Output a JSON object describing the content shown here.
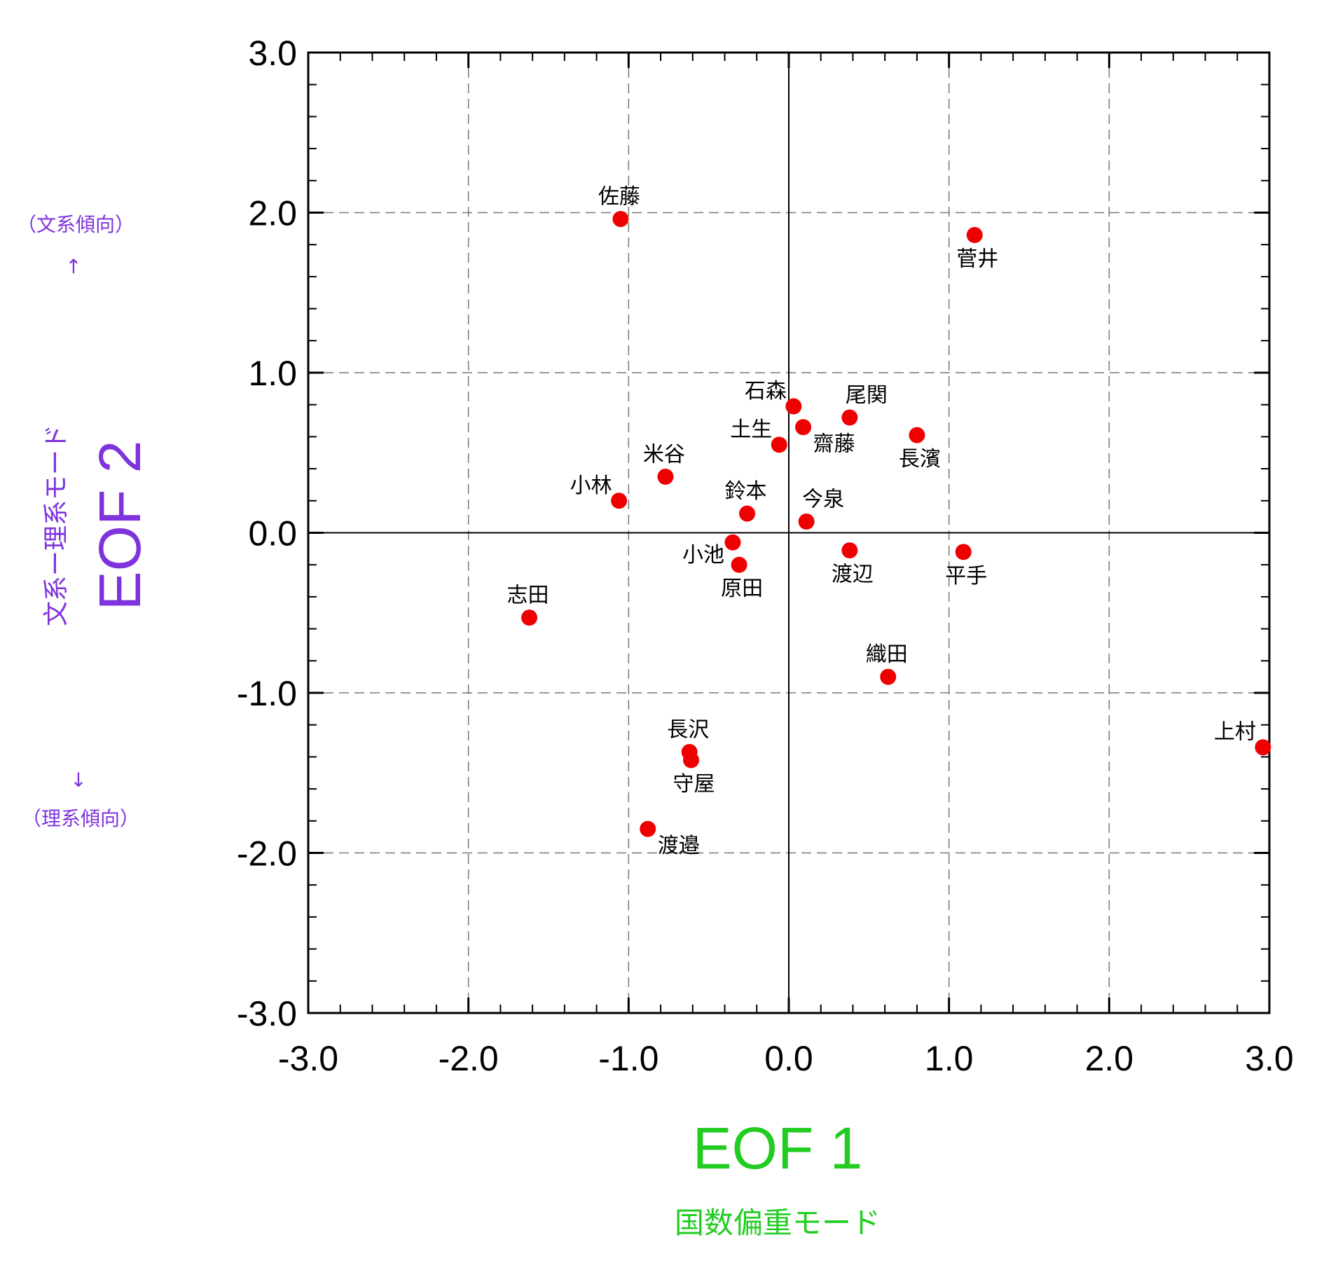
{
  "colors": {
    "accent_x": "#22cc22",
    "accent_y": "#7f33dd",
    "point": "#ee0000",
    "axis": "#000000",
    "grid": "#777777"
  },
  "axes": {
    "x_title": "EOF 1",
    "x_subtitle": "国数偏重モード",
    "y_title": "EOF 2",
    "y_subtitle": "文系ー理系モード",
    "y_top_note": "（文系傾向）",
    "y_top_arrow": "↑",
    "y_bottom_arrow": "↓",
    "y_bottom_note": "（理系傾向）"
  },
  "chart_data": {
    "type": "scatter",
    "xlabel": "EOF 1",
    "ylabel": "EOF 2",
    "xlim": [
      -3.0,
      3.0
    ],
    "ylim": [
      -3.0,
      3.0
    ],
    "xticks": [
      "-3.0",
      "-2.0",
      "-1.0",
      "0.0",
      "1.0",
      "2.0",
      "3.0"
    ],
    "yticks": [
      "-3.0",
      "-2.0",
      "-1.0",
      "0.0",
      "1.0",
      "2.0",
      "3.0"
    ],
    "grid": true,
    "grid_style": "dashed",
    "points": [
      {
        "label": "佐藤",
        "x": -1.05,
        "y": 1.96,
        "pos": "above"
      },
      {
        "label": "菅井",
        "x": 1.16,
        "y": 1.86,
        "pos": "below"
      },
      {
        "label": "石森",
        "x": 0.03,
        "y": 0.79,
        "pos": "upper-left"
      },
      {
        "label": "尾関",
        "x": 0.38,
        "y": 0.72,
        "pos": "upper-right"
      },
      {
        "label": "齋藤",
        "x": 0.09,
        "y": 0.66,
        "pos": "lower-right"
      },
      {
        "label": "長濱",
        "x": 0.8,
        "y": 0.61,
        "pos": "below"
      },
      {
        "label": "土生",
        "x": -0.06,
        "y": 0.55,
        "pos": "upper-left"
      },
      {
        "label": "米谷",
        "x": -0.77,
        "y": 0.35,
        "pos": "above"
      },
      {
        "label": "小林",
        "x": -1.06,
        "y": 0.2,
        "pos": "upper-left"
      },
      {
        "label": "鈴本",
        "x": -0.26,
        "y": 0.12,
        "pos": "above"
      },
      {
        "label": "今泉",
        "x": 0.11,
        "y": 0.07,
        "pos": "upper-right"
      },
      {
        "label": "小池",
        "x": -0.35,
        "y": -0.06,
        "pos": "lower-left"
      },
      {
        "label": "渡辺",
        "x": 0.38,
        "y": -0.11,
        "pos": "below"
      },
      {
        "label": "平手",
        "x": 1.09,
        "y": -0.12,
        "pos": "below"
      },
      {
        "label": "原田",
        "x": -0.31,
        "y": -0.2,
        "pos": "below"
      },
      {
        "label": "志田",
        "x": -1.62,
        "y": -0.53,
        "pos": "above"
      },
      {
        "label": "織田",
        "x": 0.62,
        "y": -0.9,
        "pos": "above"
      },
      {
        "label": "上村",
        "x": 2.96,
        "y": -1.34,
        "pos": "upper-left"
      },
      {
        "label": "長沢",
        "x": -0.62,
        "y": -1.37,
        "pos": "above"
      },
      {
        "label": "守屋",
        "x": -0.61,
        "y": -1.42,
        "pos": "below"
      },
      {
        "label": "渡邉",
        "x": -0.88,
        "y": -1.85,
        "pos": "lower-right"
      }
    ]
  }
}
